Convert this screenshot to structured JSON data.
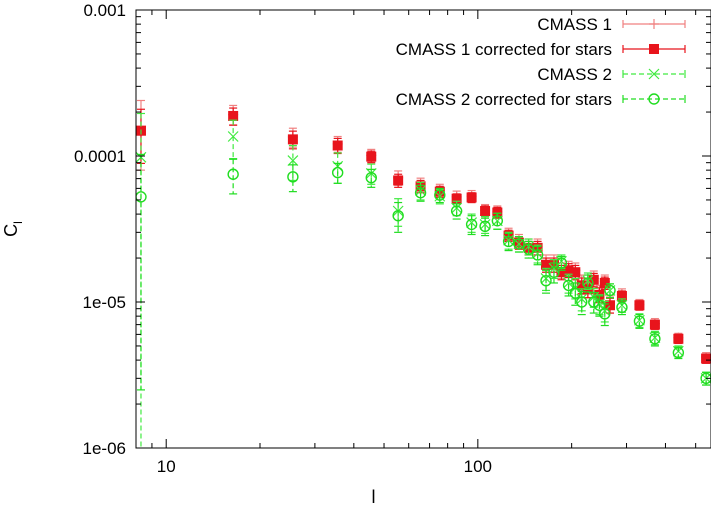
{
  "chart_data": {
    "type": "scatter",
    "x_scale": "log",
    "y_scale": "log",
    "xlim": [
      8,
      560
    ],
    "ylim": [
      1e-06,
      0.001
    ],
    "xlabel": "l",
    "ylabel": "C_l",
    "ylabel_main": "C",
    "ylabel_sub": "l",
    "x_ticks": [
      {
        "value": 10,
        "label": "10"
      },
      {
        "value": 100,
        "label": "100"
      }
    ],
    "y_ticks": [
      {
        "value": 0.001,
        "label": "0.001"
      },
      {
        "value": 0.0001,
        "label": "0.0001"
      },
      {
        "value": 1e-05,
        "label": "1e-05"
      },
      {
        "value": 1e-06,
        "label": "1e-06"
      }
    ],
    "legend_position": "top-right",
    "series": [
      {
        "name": "CMASS 1",
        "color": "#f08080",
        "marker": "plus",
        "dashed": false,
        "x": [
          8.3,
          16.4,
          25.5,
          35.5,
          45.5,
          55.5,
          65.5,
          75.5,
          85.5,
          95.5,
          105.5,
          115.5,
          125.5,
          135.5,
          145.5,
          155.5,
          165.5,
          175.5,
          185.5,
          195.5,
          205.5,
          215.5,
          225.5,
          235.5,
          245.5,
          255.5,
          265.5,
          290,
          330,
          370,
          440,
          540
        ],
        "y": [
          0.00016,
          0.000192,
          0.000135,
          0.000121,
          0.000101,
          7.1e-05,
          6.35e-05,
          5.8e-05,
          5.25e-05,
          5.3e-05,
          4.25e-05,
          4.15e-05,
          2.9e-05,
          2.6e-05,
          2.4e-05,
          2.4e-05,
          1.85e-05,
          1.85e-05,
          1.65e-05,
          1.7e-05,
          1.65e-05,
          1.33e-05,
          1.25e-05,
          1.45e-05,
          1.15e-05,
          1.38e-05,
          9.7e-06,
          1.13e-05,
          9.6e-06,
          7.1e-06,
          5.7e-06,
          4.2e-06
        ],
        "err": [
          8e-05,
          3e-05,
          2e-05,
          1.5e-05,
          1e-05,
          8e-06,
          7e-06,
          6e-06,
          5e-06,
          5e-06,
          4e-06,
          4e-06,
          3e-06,
          3e-06,
          3e-06,
          3e-06,
          2.5e-06,
          2.5e-06,
          2e-06,
          2e-06,
          2e-06,
          2e-06,
          1.8e-06,
          1.8e-06,
          1.5e-06,
          1.5e-06,
          1.3e-06,
          1e-06,
          8e-07,
          6e-07,
          4e-07,
          3e-07
        ]
      },
      {
        "name": "CMASS 1 corrected for stars",
        "color": "#e8141c",
        "marker": "filled-square",
        "dashed": false,
        "x": [
          8.3,
          16.4,
          25.5,
          35.5,
          45.5,
          55.5,
          65.5,
          75.5,
          85.5,
          95.5,
          105.5,
          115.5,
          125.5,
          135.5,
          145.5,
          155.5,
          165.5,
          175.5,
          185.5,
          195.5,
          205.5,
          215.5,
          225.5,
          235.5,
          245.5,
          255.5,
          265.5,
          290,
          330,
          370,
          440,
          540
        ],
        "y": [
          0.000149,
          0.000188,
          0.00013,
          0.000118,
          9.9e-05,
          6.8e-05,
          6.2e-05,
          5.7e-05,
          5.1e-05,
          5.2e-05,
          4.2e-05,
          4.1e-05,
          2.85e-05,
          2.55e-05,
          2.35e-05,
          2.35e-05,
          1.8e-05,
          1.8e-05,
          1.6e-05,
          1.65e-05,
          1.6e-05,
          1.3e-05,
          1.22e-05,
          1.42e-05,
          1.12e-05,
          1.35e-05,
          9.5e-06,
          1.1e-05,
          9.5e-06,
          7e-06,
          5.6e-06,
          4.1e-06
        ],
        "err": [
          6e-05,
          2.5e-05,
          1.8e-05,
          1.4e-05,
          9e-06,
          7e-06,
          6e-06,
          5e-06,
          4e-06,
          4e-06,
          3.5e-06,
          3.5e-06,
          2.5e-06,
          2.5e-06,
          2.5e-06,
          2.5e-06,
          2e-06,
          2e-06,
          1.8e-06,
          1.8e-06,
          1.8e-06,
          1.6e-06,
          1.5e-06,
          1.5e-06,
          1.3e-06,
          1.3e-06,
          1.1e-06,
          9e-07,
          7e-07,
          5e-07,
          4e-07,
          3e-07
        ]
      },
      {
        "name": "CMASS 2",
        "color": "#40ea40",
        "marker": "cross",
        "dashed": true,
        "x": [
          8.3,
          16.4,
          25.5,
          35.5,
          45.5,
          55.5,
          65.5,
          75.5,
          85.5,
          95.5,
          105.5,
          115.5,
          125.5,
          135.5,
          145.5,
          155.5,
          165.5,
          175.5,
          185.5,
          195.5,
          205.5,
          215.5,
          225.5,
          235.5,
          245.5,
          255.5,
          265.5,
          290,
          330,
          370,
          440,
          540
        ],
        "y": [
          9.8e-05,
          0.000136,
          9.3e-05,
          8.5e-05,
          7.6e-05,
          4.2e-05,
          5.8e-05,
          5.3e-05,
          4.4e-05,
          3.5e-05,
          3.4e-05,
          3.6e-05,
          2.65e-05,
          2.5e-05,
          2.4e-05,
          2.15e-05,
          1.45e-05,
          1.7e-05,
          1.9e-05,
          1.35e-05,
          1.25e-05,
          1.05e-05,
          1.4e-05,
          1.08e-05,
          9.7e-06,
          8.7e-06,
          1.2e-05,
          9.5e-06,
          7.5e-06,
          5.7e-06,
          4.6e-06,
          3e-06
        ],
        "err": [
          9.75e-05,
          4e-05,
          2.5e-05,
          2e-05,
          1.2e-05,
          9e-06,
          8e-06,
          6e-06,
          5e-06,
          5e-06,
          4.5e-06,
          4.5e-06,
          3.5e-06,
          3e-06,
          3e-06,
          3e-06,
          2.5e-06,
          2.5e-06,
          2e-06,
          2e-06,
          2e-06,
          1.8e-06,
          1.8e-06,
          1.6e-06,
          1.5e-06,
          1.4e-06,
          1.3e-06,
          1e-06,
          8e-07,
          6e-07,
          4e-07,
          3e-07
        ]
      },
      {
        "name": "CMASS 2 corrected for stars",
        "color": "#20dd20",
        "marker": "open-circle",
        "dashed": true,
        "x": [
          8.3,
          16.4,
          25.5,
          35.5,
          45.5,
          55.5,
          65.5,
          75.5,
          85.5,
          95.5,
          105.5,
          115.5,
          125.5,
          135.5,
          145.5,
          155.5,
          165.5,
          175.5,
          185.5,
          195.5,
          205.5,
          215.5,
          225.5,
          235.5,
          245.5,
          255.5,
          265.5,
          290,
          330,
          370,
          440,
          540
        ],
        "y": [
          5.25e-05,
          7.5e-05,
          7.2e-05,
          7.7e-05,
          7.1e-05,
          3.9e-05,
          5.6e-05,
          5.4e-05,
          4.2e-05,
          3.4e-05,
          3.3e-05,
          3.6e-05,
          2.6e-05,
          2.5e-05,
          2.3e-05,
          2.1e-05,
          1.4e-05,
          1.6e-05,
          1.85e-05,
          1.3e-05,
          1.15e-05,
          1e-05,
          1.35e-05,
          1e-05,
          9.5e-06,
          8.3e-06,
          1.2e-05,
          9.2e-06,
          7.4e-06,
          5.6e-06,
          4.5e-06,
          3e-06
        ],
        "err": [
          5e-05,
          2e-05,
          1.5e-05,
          1.2e-05,
          1e-05,
          9e-06,
          7e-06,
          6e-06,
          5e-06,
          5e-06,
          4.5e-06,
          4.5e-06,
          3.5e-06,
          3e-06,
          3e-06,
          3e-06,
          2.5e-06,
          2.5e-06,
          2e-06,
          2e-06,
          2e-06,
          1.8e-06,
          1.8e-06,
          1.6e-06,
          1.5e-06,
          1.4e-06,
          1.3e-06,
          1e-06,
          8e-07,
          6e-07,
          4e-07,
          3e-07
        ]
      }
    ]
  }
}
